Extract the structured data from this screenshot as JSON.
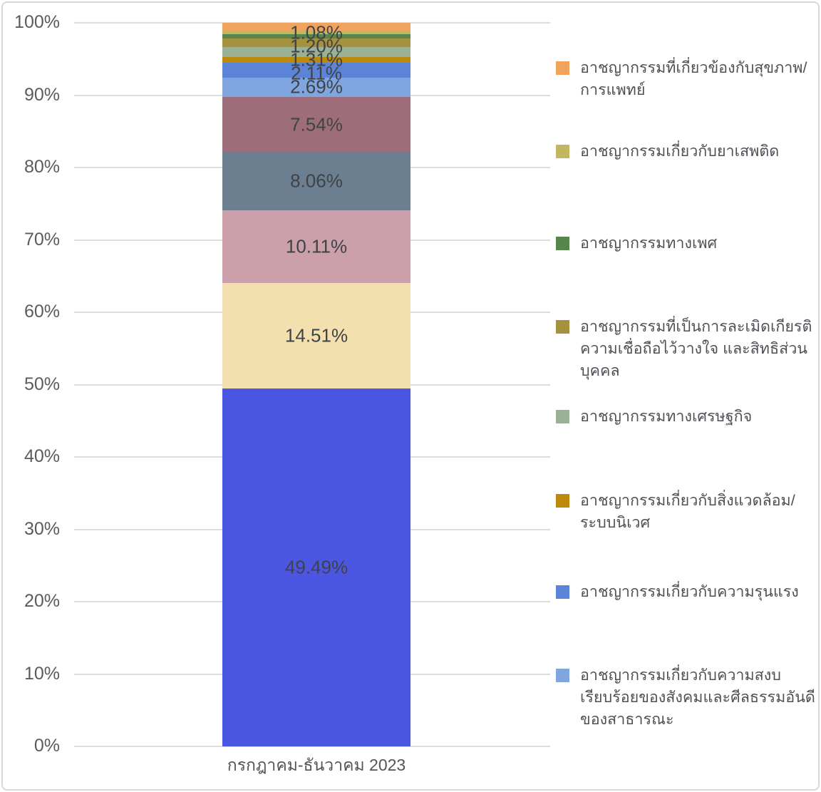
{
  "chart_data": {
    "type": "bar",
    "subtype": "stacked-100-percent-column",
    "title": "",
    "categories": [
      "กรกฎาคม-ธันวาคม 2023"
    ],
    "xlabel": "",
    "ylabel": "",
    "ylim": [
      0,
      100
    ],
    "grid": true,
    "legend_position": "right",
    "y_axis": {
      "ticks_top_to_bottom": [
        "100%",
        "90%",
        "80%",
        "70%",
        "60%",
        "50%",
        "40%",
        "30%",
        "20%",
        "10%",
        "0%"
      ]
    },
    "series_bottom_to_top": [
      {
        "name": null,
        "value": 49.49,
        "label": "49.49%",
        "color": "#4b57e2"
      },
      {
        "name": null,
        "value": 14.51,
        "label": "14.51%",
        "color": "#f4dfae"
      },
      {
        "name": null,
        "value": 10.11,
        "label": "10.11%",
        "color": "#cba0ab"
      },
      {
        "name": null,
        "value": 8.06,
        "label": "8.06%",
        "color": "#6b7f91"
      },
      {
        "name": null,
        "value": 7.54,
        "label": "7.54%",
        "color": "#9d6e79"
      },
      {
        "name": "อาชญากรรมเกี่ยวกับความสงบเรียบร้อยของสังคมและศีลธรรมอันดีของสาธารณะ",
        "value": 2.69,
        "label": "2.69%",
        "color": "#7fa6df",
        "label_y": 90
      },
      {
        "name": "อาชญากรรมเกี่ยวกับความรุนแรง",
        "value": 2.11,
        "label": "2.11%",
        "color": "#5b84d8",
        "label_y": 71
      },
      {
        "name": "อาชญากรรมเกี่ยวกับสิ่งแวดล้อม/ระบบนิเวศ",
        "value": 0.8,
        "label": null,
        "color": "#bc890b"
      },
      {
        "name": "อาชญากรรมทางเศรษฐกิจ",
        "value": 1.31,
        "label": "1.31%",
        "color": "#9bb195",
        "label_y": 52
      },
      {
        "name": "อาชญากรรมที่เป็นการละเมิดเกียรติ ความเชื่อถือไว้วางใจ และสิทธิส่วนบุคคล",
        "value": 1.2,
        "label": "1.20%",
        "color": "#a6913c",
        "label_y": 33
      },
      {
        "name": "อาชญากรรมทางเพศ",
        "value": 0.65,
        "label": null,
        "color": "#58854e"
      },
      {
        "name": "อาชญากรรมเกี่ยวกับยาเสพติด",
        "value": 0.45,
        "label": null,
        "color": "#c2b75e"
      },
      {
        "name": "อาชญากรรมที่เกี่ยวข้องกับสุขภาพ/การแพทย์",
        "value": 1.08,
        "label": "1.08%",
        "color": "#f0a35c",
        "label_y": 14
      }
    ],
    "legend_items_top_to_bottom": [
      {
        "color": "#f0a35c",
        "lines": [
          "อาชญากรรมที่เกี่ยวข้องกับสุขภาพ/",
          "การแพทย์"
        ]
      },
      {
        "color": "#c2b75e",
        "lines": [
          "อาชญากรรมเกี่ยวกับยาเสพติด"
        ]
      },
      {
        "color": "#58854e",
        "lines": [
          "อาชญากรรมทางเพศ"
        ]
      },
      {
        "color": "#a6913c",
        "lines": [
          "อาชญากรรมที่เป็นการละเมิดเกียรติ",
          "ความเชื่อถือไว้วางใจ และสิทธิส่วน",
          "บุคคล"
        ]
      },
      {
        "color": "#9bb195",
        "lines": [
          "อาชญากรรมทางเศรษฐกิจ"
        ]
      },
      {
        "color": "#bc890b",
        "lines": [
          "อาชญากรรมเกี่ยวกับสิ่งแวดล้อม/",
          "ระบบนิเวศ"
        ]
      },
      {
        "color": "#5b84d8",
        "lines": [
          "อาชญากรรมเกี่ยวกับความรุนแรง"
        ]
      },
      {
        "color": "#7fa6df",
        "lines": [
          "อาชญากรรมเกี่ยวกับความสงบ",
          "เรียบร้อยของสังคมและศีลธรรมอันดี",
          "ของสาธารณะ"
        ]
      }
    ],
    "colors": {
      "gridline": "#dddddd",
      "axis_text": "#5a5b5f",
      "annotation_text": "#3f4347",
      "legend_text": "#4d5155",
      "card_border": "#d8d8da",
      "background": "#ffffff"
    }
  }
}
